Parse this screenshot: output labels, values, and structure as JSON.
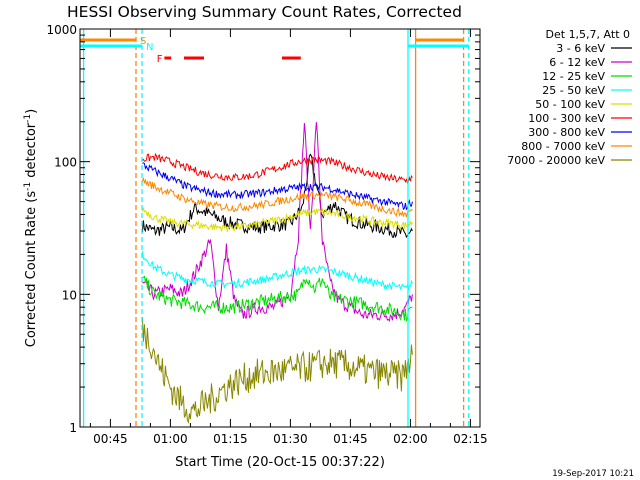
{
  "chart_data": {
    "type": "line",
    "title": "HESSI Observing Summary Count Rates, Corrected",
    "xlabel": "Start Time (20-Oct-15 00:37:22)",
    "ylabel": "Corrected Count Rate (s",
    "ylabel_sup1": "-1",
    "ylabel_mid": " detector",
    "ylabel_sup2": "-1",
    "ylabel_end": ")",
    "x_range_minutes": [
      37.4,
      137.4
    ],
    "ylim": [
      1,
      1000
    ],
    "y_scale": "log",
    "x_ticks": [
      {
        "label": "00:45",
        "minute": 45
      },
      {
        "label": "01:00",
        "minute": 60
      },
      {
        "label": "01:15",
        "minute": 75
      },
      {
        "label": "01:30",
        "minute": 90
      },
      {
        "label": "01:45",
        "minute": 105
      },
      {
        "label": "02:00",
        "minute": 120
      },
      {
        "label": "02:15",
        "minute": 135
      }
    ],
    "y_ticks": [
      {
        "label": "1",
        "value": 1
      },
      {
        "label": "10",
        "value": 10
      },
      {
        "label": "100",
        "value": 100
      },
      {
        "label": "1000",
        "value": 1000
      }
    ],
    "legend_header": "Det 1,5,7, Att 0",
    "legend_position": "right",
    "series": [
      {
        "name": "3 - 6 keV",
        "color": "#000000",
        "x": [
          53,
          56,
          60,
          63,
          66,
          70,
          74,
          78,
          82,
          86,
          90,
          93,
          95,
          98,
          101,
          104,
          108,
          112,
          116,
          119,
          120.5
        ],
        "y": [
          33,
          30,
          32,
          30,
          45,
          40,
          35,
          33,
          32,
          33,
          34,
          45,
          110,
          40,
          48,
          38,
          34,
          32,
          30,
          28,
          30
        ]
      },
      {
        "name": "6 - 12 keV",
        "color": "#cc00cc",
        "x": [
          53,
          56,
          60,
          63,
          66,
          70,
          72,
          74,
          76,
          78,
          82,
          86,
          90,
          92,
          93.5,
          95,
          96.5,
          98,
          100,
          102,
          105,
          108,
          112,
          116,
          119,
          120.5
        ],
        "y": [
          12,
          10,
          11,
          10,
          14,
          25,
          8,
          22,
          9,
          7,
          8,
          8,
          10,
          28,
          200,
          30,
          210,
          25,
          12,
          9,
          8,
          7,
          7,
          7,
          8,
          10
        ]
      },
      {
        "name": "12 - 25 keV",
        "color": "#00dd00",
        "x": [
          53,
          56,
          60,
          64,
          68,
          72,
          76,
          80,
          84,
          88,
          92,
          94,
          96,
          98,
          100,
          104,
          108,
          112,
          116,
          119,
          120.5
        ],
        "y": [
          13,
          10,
          9,
          8.5,
          8,
          8,
          8,
          8.5,
          9,
          9.5,
          10,
          14,
          11,
          13,
          9.5,
          9,
          8.5,
          8,
          7.5,
          7,
          8
        ]
      },
      {
        "name": "25 - 50 keV",
        "color": "#00ffff",
        "x": [
          53,
          56,
          60,
          64,
          68,
          72,
          76,
          80,
          84,
          88,
          92,
          96,
          100,
          104,
          108,
          112,
          116,
          119,
          120.5
        ],
        "y": [
          20,
          16,
          14,
          13,
          12.5,
          12,
          12,
          12.5,
          13,
          14,
          15,
          15.5,
          15,
          14,
          13,
          12,
          11.5,
          11,
          12
        ]
      },
      {
        "name": "50 - 100 keV",
        "color": "#dddd00",
        "x": [
          53,
          56,
          60,
          64,
          68,
          72,
          76,
          80,
          84,
          88,
          92,
          96,
          100,
          104,
          108,
          112,
          116,
          119,
          120.5
        ],
        "y": [
          44,
          38,
          35,
          34,
          33,
          32,
          32,
          33,
          35,
          37,
          40,
          42,
          41,
          39,
          37,
          35,
          34,
          33,
          35
        ]
      },
      {
        "name": "100 - 300 keV",
        "color": "#ff0000",
        "x": [
          53,
          56,
          60,
          64,
          68,
          72,
          76,
          80,
          84,
          88,
          92,
          96,
          100,
          104,
          108,
          112,
          116,
          119,
          120.5
        ],
        "y": [
          105,
          108,
          100,
          90,
          82,
          78,
          76,
          78,
          84,
          92,
          100,
          104,
          100,
          92,
          84,
          78,
          74,
          72,
          76
        ]
      },
      {
        "name": "300 - 800 keV",
        "color": "#0000ff",
        "x": [
          53,
          56,
          60,
          64,
          68,
          72,
          76,
          80,
          84,
          88,
          92,
          96,
          100,
          104,
          108,
          112,
          116,
          119,
          120.5
        ],
        "y": [
          95,
          85,
          75,
          65,
          60,
          57,
          56,
          57,
          59,
          62,
          64,
          65,
          63,
          58,
          54,
          51,
          48,
          46,
          50
        ]
      },
      {
        "name": "800 - 7000 keV",
        "color": "#ff8800",
        "x": [
          53,
          56,
          60,
          64,
          68,
          72,
          76,
          80,
          84,
          88,
          92,
          96,
          100,
          104,
          108,
          112,
          116,
          119,
          120.5
        ],
        "y": [
          72,
          65,
          58,
          52,
          48,
          46,
          45,
          46,
          48,
          51,
          54,
          56,
          55,
          52,
          48,
          45,
          42,
          40,
          44
        ]
      },
      {
        "name": "7000 - 20000 keV",
        "color": "#888800",
        "x": [
          53,
          55,
          57,
          60,
          63,
          66,
          70,
          74,
          78,
          82,
          86,
          90,
          94,
          98,
          102,
          106,
          110,
          114,
          118,
          120.5
        ],
        "y": [
          5.5,
          4.5,
          3,
          2,
          1.5,
          1.3,
          1.6,
          2,
          2.3,
          2.5,
          2.6,
          2.7,
          2.8,
          3,
          3,
          2.8,
          2.6,
          2.5,
          2.4,
          3.5
        ]
      }
    ],
    "annotations": [
      {
        "type": "vline",
        "minute": 38.3,
        "color": "#00ffff",
        "style": "solid"
      },
      {
        "type": "vline",
        "minute": 51.4,
        "color": "#ff8800",
        "style": "dashed"
      },
      {
        "type": "vline",
        "minute": 52.9,
        "color": "#00ffff",
        "style": "dashed"
      },
      {
        "type": "vline",
        "minute": 119.4,
        "color": "#00ffff",
        "style": "solid"
      },
      {
        "type": "vline",
        "minute": 121.3,
        "color": "#ff8800",
        "style": "solid"
      },
      {
        "type": "vline",
        "minute": 133.3,
        "color": "#ff8800",
        "style": "dashed"
      },
      {
        "type": "vline",
        "minute": 134.6,
        "color": "#00ffff",
        "style": "dashed"
      }
    ],
    "bars": [
      {
        "label": "S",
        "color": "#ff8800",
        "segments": [
          [
            37.4,
            51.4
          ],
          [
            121.3,
            133.3
          ]
        ],
        "label_minute": 52.4,
        "level": 1
      },
      {
        "label": "N",
        "color": "#00ffff",
        "segments": [
          [
            37.4,
            52.9
          ],
          [
            119.4,
            134.6
          ]
        ],
        "label_minute": 53.9,
        "level": 2
      },
      {
        "label": "F",
        "color": "#ff0000",
        "segments": [
          [
            58.5,
            60.2
          ],
          [
            63.4,
            68.4
          ],
          [
            87.9,
            92.6
          ]
        ],
        "label_minute": 56.6,
        "level": 3
      }
    ],
    "timestamp": "19-Sep-2017 10:21"
  }
}
